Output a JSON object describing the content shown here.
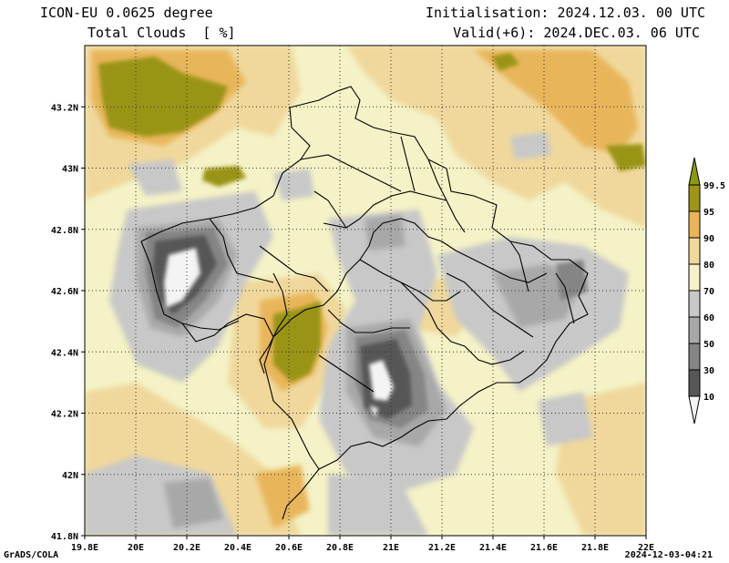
{
  "header": {
    "model": "ICON-EU 0.0625 degree",
    "variable": "Total Clouds  [ %]",
    "initialisation": "Initialisation: 2024.12.03. 00 UTC",
    "valid": "Valid(+6): 2024.DEC.03. 06 UTC"
  },
  "footer": {
    "credit": "GrADS/COLA",
    "timestamp": "2024-12-03-04:21"
  },
  "map": {
    "lon_range": [
      19.8,
      22.0
    ],
    "lat_range": [
      41.8,
      43.4
    ],
    "lon_ticks": [
      "19.8E",
      "20E",
      "20.2E",
      "20.4E",
      "20.6E",
      "20.8E",
      "21E",
      "21.2E",
      "21.4E",
      "21.6E",
      "21.8E",
      "22E"
    ],
    "lat_ticks": [
      "41.8N",
      "42N",
      "42.2N",
      "42.4N",
      "42.6N",
      "42.8N",
      "43N",
      "43.2N"
    ],
    "grid": true
  },
  "colorbar": {
    "labels": [
      "10",
      "30",
      "50",
      "60",
      "70",
      "80",
      "90",
      "95",
      "99.5"
    ],
    "colors": [
      "#f4f4f4",
      "#575757",
      "#858585",
      "#a8a8a8",
      "#c8c8c8",
      "#f4f2c6",
      "#f0d89c",
      "#e8b55a",
      "#a09418",
      "#8a9a12"
    ]
  }
}
